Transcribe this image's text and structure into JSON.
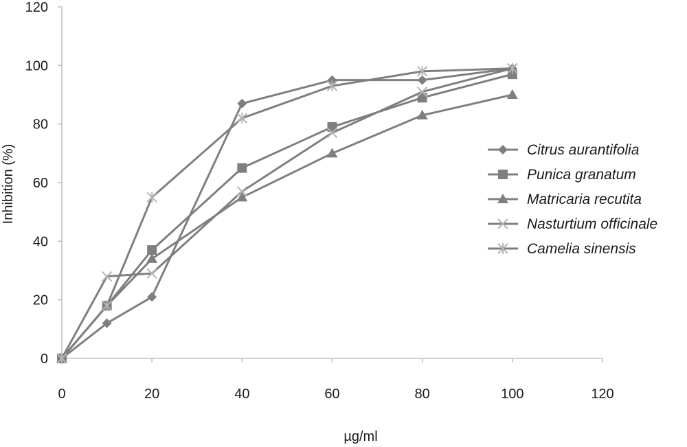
{
  "chart_data": {
    "type": "line",
    "title": "",
    "xlabel": "µg/ml",
    "ylabel": "Inhibition (%)",
    "xlim": [
      0,
      120
    ],
    "ylim": [
      0,
      120
    ],
    "x_ticks": [
      0,
      20,
      40,
      60,
      80,
      100,
      120
    ],
    "y_ticks": [
      0,
      20,
      40,
      60,
      80,
      100,
      120
    ],
    "grid": false,
    "legend_position": "right",
    "line_color": "#7f7f7f",
    "series": [
      {
        "name": "Citrus aurantifolia",
        "marker": "diamond",
        "x": [
          0,
          10,
          20,
          40,
          60,
          80,
          100
        ],
        "y": [
          0,
          12,
          21,
          87,
          95,
          95,
          99
        ]
      },
      {
        "name": "Punica granatum",
        "marker": "square",
        "x": [
          0,
          10,
          20,
          40,
          60,
          80,
          100
        ],
        "y": [
          0,
          18,
          37,
          65,
          79,
          89,
          97
        ]
      },
      {
        "name": "Matricaria recutita",
        "marker": "triangle",
        "x": [
          0,
          10,
          20,
          40,
          60,
          80,
          100
        ],
        "y": [
          0,
          18,
          34,
          55,
          70,
          83,
          90
        ]
      },
      {
        "name": "Nasturtium officinale",
        "marker": "x",
        "x": [
          0,
          10,
          20,
          40,
          60,
          80,
          100
        ],
        "y": [
          0,
          28,
          29,
          57,
          77,
          91,
          99
        ]
      },
      {
        "name": "Camelia sinensis",
        "marker": "asterisk",
        "x": [
          0,
          10,
          20,
          40,
          60,
          80,
          100
        ],
        "y": [
          0,
          18,
          55,
          82,
          93,
          98,
          99
        ]
      }
    ]
  }
}
